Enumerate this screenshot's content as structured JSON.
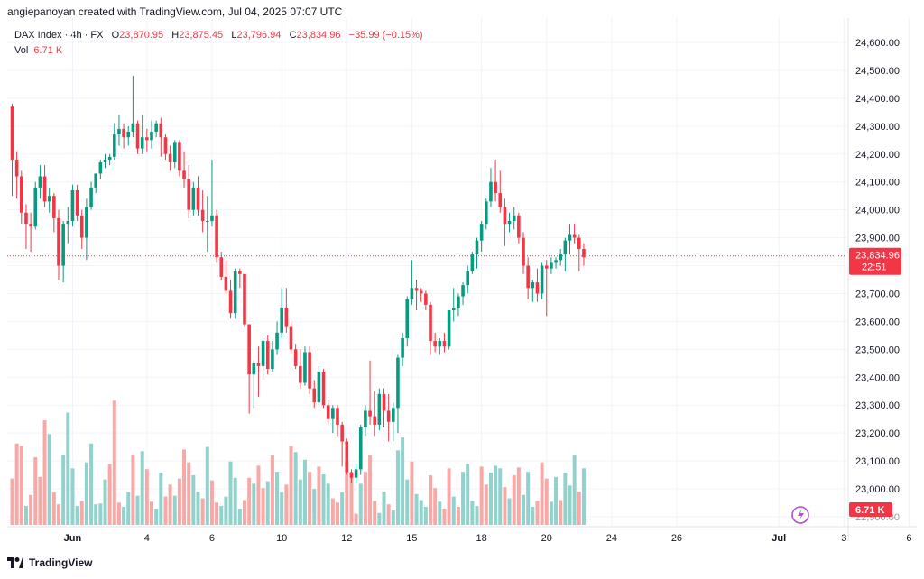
{
  "header": {
    "text": "angiepanoyan created with TradingView.com, Jul 04, 2025 07:07 UTC"
  },
  "legend": {
    "symbol": "DAX Index · 4h · FX",
    "open_label": "O",
    "open": "23,870.95",
    "high_label": "H",
    "high": "23,875.45",
    "low_label": "L",
    "low": "23,796.94",
    "close_label": "C",
    "close": "23,834.96",
    "change": "−35.99 (−0.15%)",
    "vol_label": "Vol",
    "vol": "6.71 K"
  },
  "price_tag": {
    "price": "23,834.96",
    "countdown": "22:51"
  },
  "vol_tag": "6.71 K",
  "footer": {
    "brand": "TradingView"
  },
  "colors": {
    "up": "#089981",
    "down": "#f23645",
    "vol_up": "#92d2cc",
    "vol_down": "#f7a9a7",
    "grid": "#f0f3fa",
    "axis_text": "#131722"
  },
  "chart_data": {
    "type": "candlestick",
    "title": "DAX Index · 4h · FX",
    "y_ticks": [
      "24,600.00",
      "24,500.00",
      "24,400.00",
      "24,300.00",
      "24,200.00",
      "24,100.00",
      "24,000.00",
      "23,900.00",
      "23,800.00",
      "23,700.00",
      "23,600.00",
      "23,500.00",
      "23,400.00",
      "23,300.00",
      "23,200.00",
      "23,100.00",
      "23,000.00",
      "22,900.00"
    ],
    "ylim": [
      22880,
      24650
    ],
    "x_labels": [
      {
        "label": "Jun",
        "bar": 13,
        "bold": true
      },
      {
        "label": "4",
        "bar": 29
      },
      {
        "label": "6",
        "bar": 43
      },
      {
        "label": "10",
        "bar": 58
      },
      {
        "label": "12",
        "bar": 72
      },
      {
        "label": "15",
        "bar": 86
      },
      {
        "label": "18",
        "bar": 101
      },
      {
        "label": "20",
        "bar": 115
      },
      {
        "label": "24",
        "bar": 129
      },
      {
        "label": "26",
        "bar": 143
      },
      {
        "label": "Jul",
        "bar": 165,
        "bold": true
      },
      {
        "label": "3",
        "bar": 179
      },
      {
        "label": "6",
        "bar": 193
      }
    ],
    "last_price": 23834.96,
    "candles": [
      [
        24370,
        24380,
        24050,
        24180
      ],
      [
        24180,
        24210,
        24040,
        24120
      ],
      [
        24120,
        24140,
        23950,
        23990
      ],
      [
        23990,
        24020,
        23860,
        23950
      ],
      [
        23950,
        23990,
        23850,
        23940
      ],
      [
        23940,
        24100,
        23930,
        24080
      ],
      [
        24080,
        24160,
        24040,
        24120
      ],
      [
        24120,
        24160,
        24010,
        24030
      ],
      [
        24030,
        24080,
        23990,
        24050
      ],
      [
        24050,
        24060,
        23920,
        23970
      ],
      [
        23970,
        24000,
        23750,
        23800
      ],
      [
        23800,
        23960,
        23740,
        23950
      ],
      [
        23950,
        24010,
        23880,
        23960
      ],
      [
        23960,
        24090,
        23940,
        24070
      ],
      [
        24070,
        24090,
        23960,
        23980
      ],
      [
        23980,
        24000,
        23860,
        23900
      ],
      [
        23900,
        24040,
        23820,
        24010
      ],
      [
        24010,
        24100,
        24000,
        24080
      ],
      [
        24080,
        24130,
        24060,
        24130
      ],
      [
        24130,
        24180,
        24110,
        24170
      ],
      [
        24170,
        24200,
        24150,
        24180
      ],
      [
        24180,
        24200,
        24160,
        24190
      ],
      [
        24190,
        24310,
        24180,
        24270
      ],
      [
        24270,
        24340,
        24230,
        24290
      ],
      [
        24290,
        24310,
        24220,
        24260
      ],
      [
        24260,
        24300,
        24230,
        24280
      ],
      [
        24280,
        24480,
        24260,
        24310
      ],
      [
        24310,
        24320,
        24200,
        24220
      ],
      [
        24220,
        24340,
        24200,
        24260
      ],
      [
        24260,
        24290,
        24210,
        24250
      ],
      [
        24250,
        24320,
        24220,
        24280
      ],
      [
        24280,
        24320,
        24260,
        24310
      ],
      [
        24310,
        24330,
        24190,
        24260
      ],
      [
        24260,
        24270,
        24180,
        24200
      ],
      [
        24200,
        24230,
        24140,
        24170
      ],
      [
        24170,
        24250,
        24150,
        24240
      ],
      [
        24240,
        24250,
        24120,
        24140
      ],
      [
        24140,
        24210,
        24080,
        24110
      ],
      [
        24110,
        24160,
        23970,
        24000
      ],
      [
        24000,
        24100,
        23980,
        24080
      ],
      [
        24080,
        24120,
        23980,
        24000
      ],
      [
        24000,
        24070,
        23920,
        23960
      ],
      [
        23960,
        24050,
        23850,
        23960
      ],
      [
        23960,
        24180,
        23940,
        23980
      ],
      [
        23980,
        24000,
        23810,
        23830
      ],
      [
        23830,
        23850,
        23750,
        23760
      ],
      [
        23760,
        23820,
        23700,
        23710
      ],
      [
        23710,
        23750,
        23610,
        23630
      ],
      [
        23630,
        23790,
        23610,
        23780
      ],
      [
        23780,
        23790,
        23720,
        23770
      ],
      [
        23770,
        23770,
        23580,
        23590
      ],
      [
        23590,
        23590,
        23270,
        23410
      ],
      [
        23410,
        23460,
        23290,
        23450
      ],
      [
        23450,
        23510,
        23330,
        23440
      ],
      [
        23440,
        23540,
        23390,
        23530
      ],
      [
        23530,
        23550,
        23410,
        23430
      ],
      [
        23430,
        23530,
        23420,
        23500
      ],
      [
        23500,
        23600,
        23480,
        23560
      ],
      [
        23560,
        23720,
        23540,
        23650
      ],
      [
        23650,
        23720,
        23560,
        23580
      ],
      [
        23580,
        23600,
        23490,
        23500
      ],
      [
        23500,
        23520,
        23430,
        23440
      ],
      [
        23440,
        23500,
        23360,
        23380
      ],
      [
        23380,
        23510,
        23370,
        23490
      ],
      [
        23490,
        23510,
        23340,
        23360
      ],
      [
        23360,
        23390,
        23290,
        23310
      ],
      [
        23310,
        23440,
        23300,
        23420
      ],
      [
        23420,
        23430,
        23290,
        23300
      ],
      [
        23300,
        23320,
        23230,
        23250
      ],
      [
        23250,
        23300,
        23200,
        23290
      ],
      [
        23290,
        23300,
        23190,
        23230
      ],
      [
        23230,
        23240,
        23080,
        23170
      ],
      [
        23170,
        23180,
        23050,
        23060
      ],
      [
        23060,
        23070,
        23020,
        23040
      ],
      [
        23040,
        23090,
        23020,
        23070
      ],
      [
        23070,
        23230,
        23050,
        23220
      ],
      [
        23220,
        23300,
        23190,
        23280
      ],
      [
        23280,
        23460,
        23230,
        23260
      ],
      [
        23260,
        23350,
        23190,
        23230
      ],
      [
        23230,
        23360,
        23210,
        23340
      ],
      [
        23340,
        23360,
        23220,
        23280
      ],
      [
        23280,
        23340,
        23170,
        23240
      ],
      [
        23240,
        23310,
        23170,
        23290
      ],
      [
        23290,
        23480,
        23200,
        23470
      ],
      [
        23470,
        23560,
        23440,
        23540
      ],
      [
        23540,
        23690,
        23510,
        23680
      ],
      [
        23680,
        23820,
        23660,
        23720
      ],
      [
        23720,
        23750,
        23640,
        23710
      ],
      [
        23710,
        23720,
        23670,
        23700
      ],
      [
        23700,
        23710,
        23640,
        23660
      ],
      [
        23660,
        23670,
        23480,
        23530
      ],
      [
        23530,
        23560,
        23490,
        23510
      ],
      [
        23510,
        23540,
        23480,
        23530
      ],
      [
        23530,
        23560,
        23490,
        23510
      ],
      [
        23510,
        23640,
        23500,
        23640
      ],
      [
        23640,
        23720,
        23600,
        23650
      ],
      [
        23650,
        23700,
        23620,
        23690
      ],
      [
        23690,
        23740,
        23660,
        23730
      ],
      [
        23730,
        23800,
        23700,
        23780
      ],
      [
        23780,
        23850,
        23770,
        23840
      ],
      [
        23840,
        23900,
        23790,
        23890
      ],
      [
        23890,
        23960,
        23850,
        23950
      ],
      [
        23950,
        24040,
        23930,
        24030
      ],
      [
        24030,
        24150,
        24010,
        24100
      ],
      [
        24100,
        24180,
        24030,
        24060
      ],
      [
        24060,
        24140,
        23990,
        24010
      ],
      [
        24010,
        24040,
        23870,
        23950
      ],
      [
        23950,
        23990,
        23920,
        23960
      ],
      [
        23960,
        24010,
        23930,
        23980
      ],
      [
        23980,
        23990,
        23880,
        23900
      ],
      [
        23900,
        23920,
        23770,
        23800
      ],
      [
        23800,
        23830,
        23680,
        23720
      ],
      [
        23720,
        23750,
        23670,
        23740
      ],
      [
        23740,
        23790,
        23670,
        23700
      ],
      [
        23700,
        23810,
        23680,
        23800
      ],
      [
        23800,
        23820,
        23620,
        23790
      ],
      [
        23790,
        23830,
        23770,
        23810
      ],
      [
        23810,
        23830,
        23790,
        23820
      ],
      [
        23820,
        23860,
        23800,
        23840
      ],
      [
        23840,
        23900,
        23780,
        23890
      ],
      [
        23890,
        23950,
        23840,
        23910
      ],
      [
        23910,
        23950,
        23880,
        23900
      ],
      [
        23900,
        23910,
        23780,
        23860
      ],
      [
        23860,
        23880,
        23800,
        23830
      ]
    ],
    "volumes": [
      [
        0.54,
        0
      ],
      [
        0.95,
        0
      ],
      [
        0.92,
        0
      ],
      [
        0.22,
        1
      ],
      [
        0.35,
        0
      ],
      [
        0.79,
        0
      ],
      [
        0.56,
        0
      ],
      [
        1.22,
        0
      ],
      [
        1.06,
        1
      ],
      [
        0.38,
        0
      ],
      [
        0.24,
        0
      ],
      [
        0.82,
        1
      ],
      [
        1.31,
        1
      ],
      [
        0.66,
        1
      ],
      [
        0.22,
        1
      ],
      [
        0.28,
        0
      ],
      [
        0.73,
        1
      ],
      [
        0.95,
        1
      ],
      [
        0.24,
        1
      ],
      [
        0.25,
        1
      ],
      [
        0.53,
        1
      ],
      [
        0.71,
        0
      ],
      [
        1.45,
        0
      ],
      [
        0.26,
        0
      ],
      [
        0.21,
        1
      ],
      [
        0.38,
        1
      ],
      [
        0.82,
        0
      ],
      [
        0.34,
        1
      ],
      [
        0.86,
        1
      ],
      [
        0.65,
        0
      ],
      [
        0.27,
        0
      ],
      [
        0.19,
        1
      ],
      [
        0.61,
        1
      ],
      [
        0.33,
        0
      ],
      [
        0.47,
        0
      ],
      [
        0.34,
        1
      ],
      [
        0.54,
        0
      ],
      [
        0.88,
        0
      ],
      [
        0.73,
        0
      ],
      [
        0.58,
        1
      ],
      [
        0.39,
        1
      ],
      [
        0.31,
        0
      ],
      [
        0.91,
        1
      ],
      [
        0.52,
        0
      ],
      [
        0.26,
        0
      ],
      [
        0.22,
        1
      ],
      [
        0.33,
        1
      ],
      [
        0.74,
        1
      ],
      [
        0.55,
        1
      ],
      [
        0.19,
        1
      ],
      [
        0.29,
        0
      ],
      [
        0.55,
        0
      ],
      [
        0.48,
        1
      ],
      [
        0.69,
        0
      ],
      [
        0.43,
        0
      ],
      [
        0.51,
        1
      ],
      [
        0.81,
        0
      ],
      [
        0.62,
        1
      ],
      [
        0.38,
        1
      ],
      [
        0.47,
        0
      ],
      [
        0.92,
        0
      ],
      [
        0.85,
        1
      ],
      [
        0.53,
        1
      ],
      [
        0.76,
        1
      ],
      [
        0.62,
        0
      ],
      [
        0.42,
        1
      ],
      [
        0.68,
        0
      ],
      [
        0.59,
        1
      ],
      [
        0.48,
        1
      ],
      [
        0.31,
        0
      ],
      [
        0.26,
        0
      ],
      [
        0.38,
        1
      ],
      [
        0.75,
        0
      ],
      [
        0.61,
        0
      ],
      [
        0.13,
        0
      ],
      [
        0.48,
        1
      ],
      [
        0.62,
        0
      ],
      [
        0.81,
        0
      ],
      [
        0.28,
        0
      ],
      [
        0.14,
        1
      ],
      [
        0.39,
        1
      ],
      [
        0.24,
        0
      ],
      [
        0.17,
        1
      ],
      [
        0.87,
        1
      ],
      [
        1.02,
        1
      ],
      [
        0.53,
        1
      ],
      [
        0.74,
        0
      ],
      [
        0.36,
        1
      ],
      [
        0.29,
        1
      ],
      [
        0.21,
        1
      ],
      [
        0.58,
        0
      ],
      [
        0.43,
        0
      ],
      [
        0.27,
        1
      ],
      [
        0.19,
        0
      ],
      [
        0.66,
        0
      ],
      [
        0.33,
        1
      ],
      [
        0.21,
        0
      ],
      [
        0.62,
        1
      ],
      [
        0.71,
        1
      ],
      [
        0.28,
        1
      ],
      [
        0.22,
        1
      ],
      [
        0.68,
        0
      ],
      [
        0.47,
        0
      ],
      [
        0.61,
        1
      ],
      [
        0.69,
        1
      ],
      [
        0.66,
        1
      ],
      [
        0.44,
        0
      ],
      [
        0.31,
        1
      ],
      [
        0.58,
        0
      ],
      [
        0.67,
        0
      ],
      [
        0.35,
        1
      ],
      [
        0.62,
        1
      ],
      [
        0.21,
        1
      ],
      [
        0.28,
        0
      ],
      [
        0.73,
        0
      ],
      [
        0.54,
        0
      ],
      [
        0.27,
        1
      ],
      [
        0.56,
        1
      ],
      [
        0.29,
        0
      ],
      [
        0.61,
        1
      ],
      [
        0.46,
        1
      ],
      [
        0.82,
        1
      ],
      [
        0.39,
        0
      ],
      [
        0.66,
        1
      ]
    ]
  }
}
